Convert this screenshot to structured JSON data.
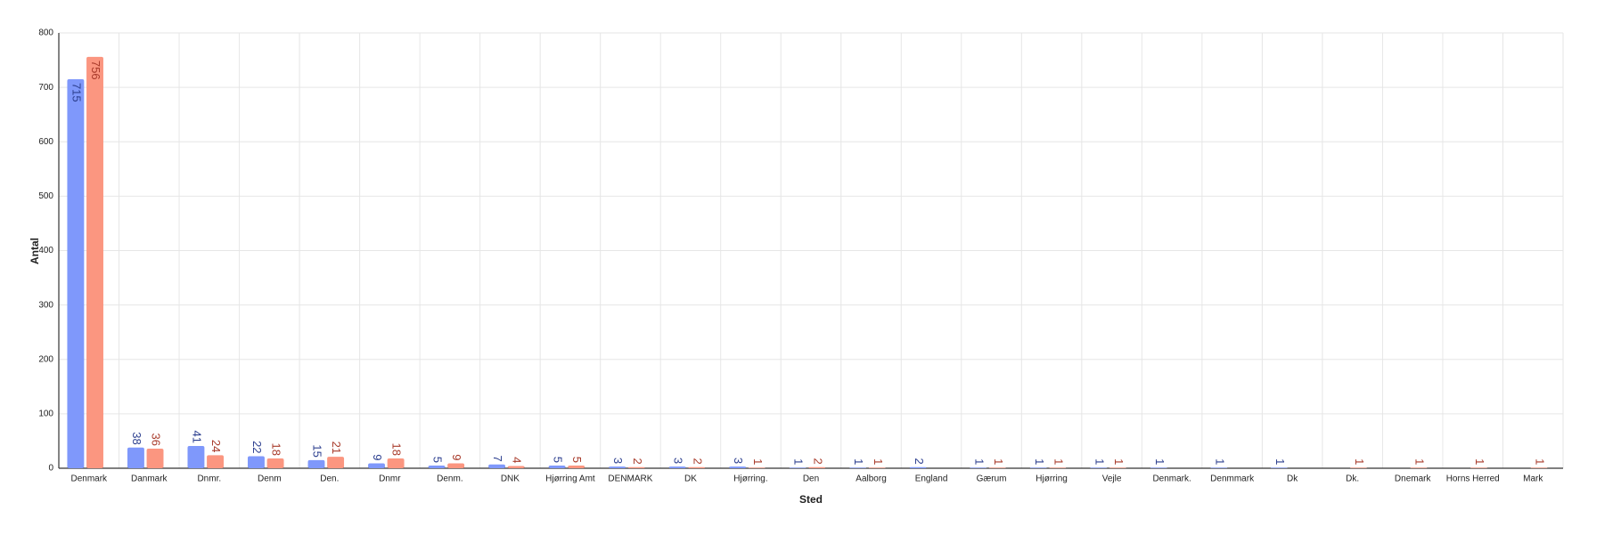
{
  "chart_data": {
    "type": "bar",
    "x_label": "Sted",
    "y_label": "Antal",
    "categories": [
      "Denmark",
      "Danmark",
      "Dnmr.",
      "Denm",
      "Den.",
      "Dnmr",
      "Denm.",
      "DNK",
      "Hjørring Amt",
      "DENMARK",
      "DK",
      "Hjørring.",
      "Den",
      "Aalborg",
      "England",
      "Gærum",
      "Hjørring",
      "Vejle",
      "Denmark.",
      "Denmmark",
      "Dk",
      "Dk.",
      "Dnemark",
      "Horns Herred",
      "Mark"
    ],
    "series": [
      {
        "color": "#7f98fb",
        "values": [
          715,
          38,
          41,
          22,
          15,
          9,
          5,
          7,
          5,
          3,
          3,
          3,
          1,
          1,
          2,
          1,
          1,
          1,
          1,
          1,
          1,
          null,
          null,
          null,
          null
        ]
      },
      {
        "color": "#fb9680",
        "values": [
          756,
          36,
          24,
          18,
          21,
          18,
          9,
          4,
          5,
          2,
          2,
          1,
          2,
          1,
          null,
          1,
          1,
          1,
          null,
          null,
          null,
          1,
          1,
          1,
          1
        ]
      }
    ],
    "ylim": [
      0,
      800
    ],
    "yticks": [
      0,
      100,
      200,
      300,
      400,
      500,
      600,
      700,
      800
    ],
    "grid": true
  }
}
